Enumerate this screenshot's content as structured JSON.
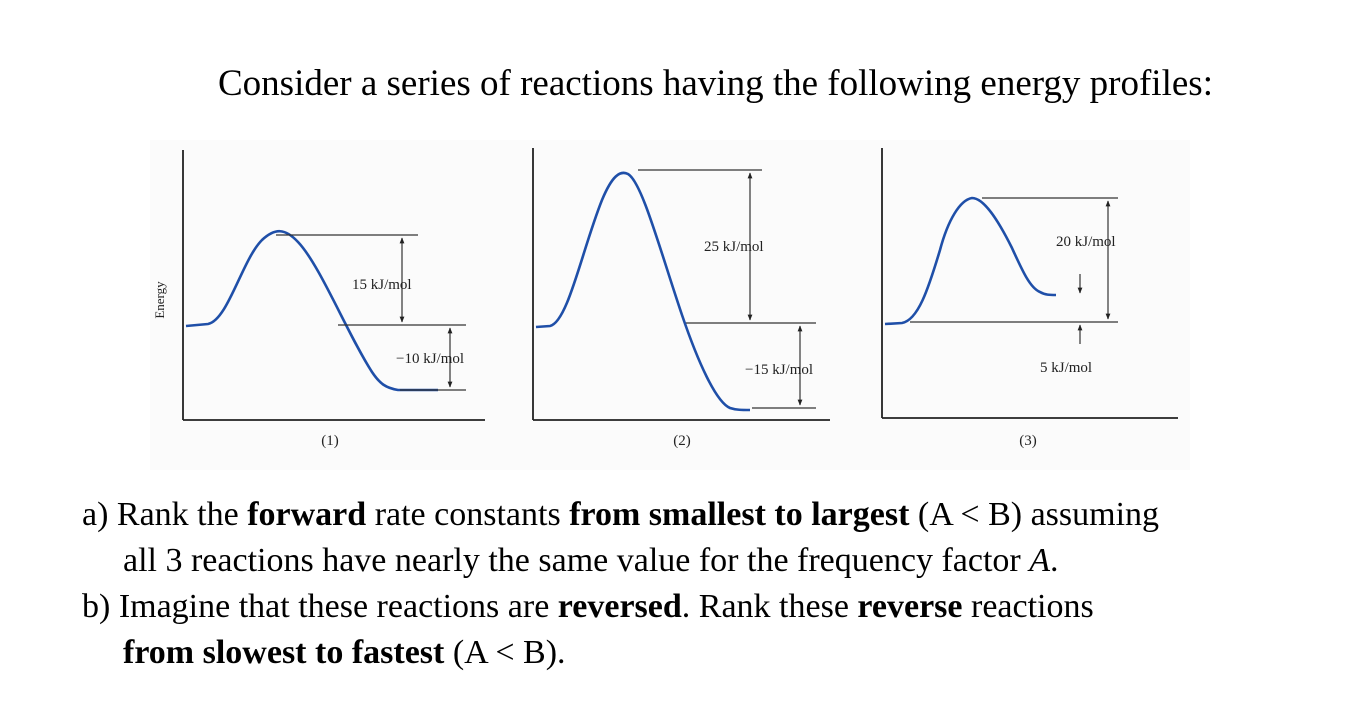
{
  "heading": "Consider a series of reactions having the following energy profiles:",
  "figure": {
    "y_axis_label": "Energy",
    "panels": [
      {
        "id": "(1)",
        "upper_label": "15 kJ/mol",
        "lower_label": "−10 kJ/mol"
      },
      {
        "id": "(2)",
        "upper_label": "25 kJ/mol",
        "lower_label": "−15 kJ/mol"
      },
      {
        "id": "(3)",
        "upper_label": "20 kJ/mol",
        "lower_label": "5 kJ/mol"
      }
    ]
  },
  "questions": {
    "a": {
      "prefix": "a) Rank the ",
      "bold1": "forward",
      "mid1": " rate constants ",
      "bold2": "from smallest to largest",
      "suffix": " (A < B) assuming",
      "line2_prefix": "all 3 reactions have nearly the same value for the frequency factor ",
      "line2_italic": "A",
      "line2_suffix": "."
    },
    "b": {
      "prefix": "b) Imagine that these reactions are ",
      "bold1": "reversed",
      "mid1": ".  Rank these ",
      "bold2": "reverse",
      "suffix": " reactions",
      "line2_bold": "from slowest to fastest",
      "line2_suffix": " (A < B)."
    }
  }
}
